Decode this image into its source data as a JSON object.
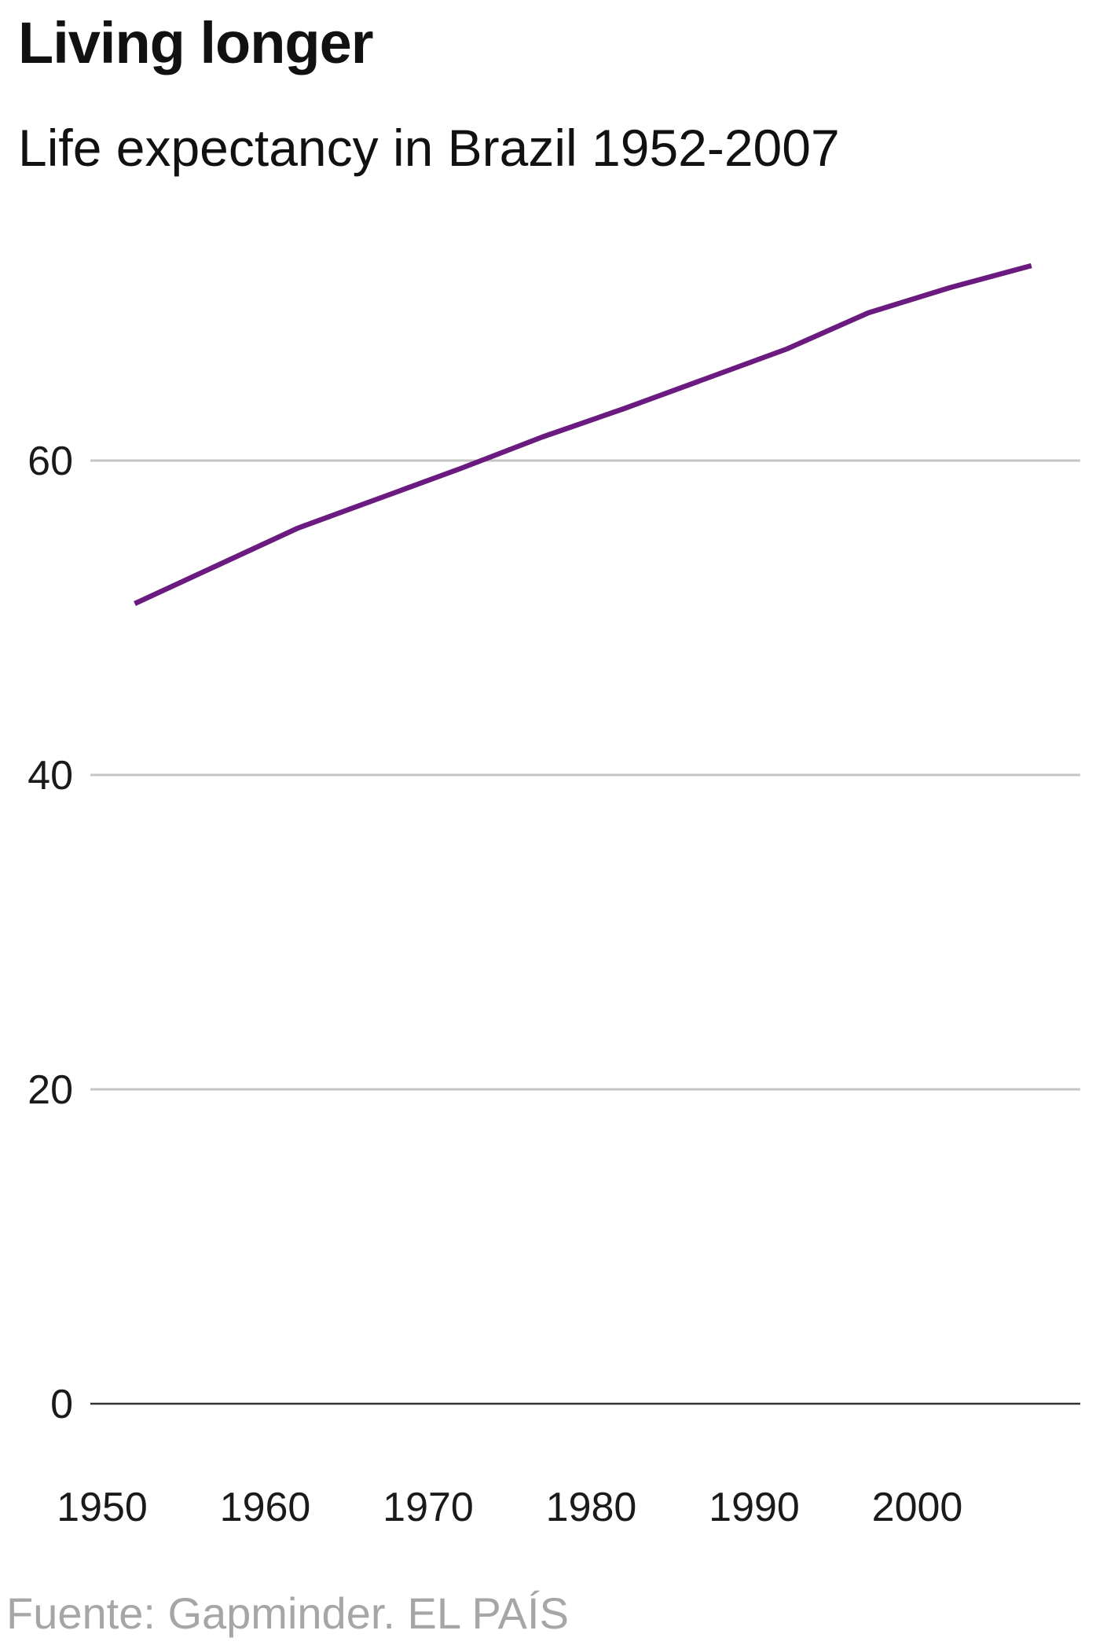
{
  "title": "Living longer",
  "subtitle": "Life expectancy in Brazil 1952-2007",
  "source": "Fuente: Gapminder. EL PAÍS",
  "colors": {
    "line": "#6b1a80",
    "grid": "#c4c4c4",
    "baseline": "#333333"
  },
  "chart_data": {
    "type": "line",
    "x": [
      1952,
      1957,
      1962,
      1967,
      1972,
      1977,
      1982,
      1987,
      1992,
      1997,
      2002,
      2007
    ],
    "series": [
      {
        "values": [
          50.9,
          53.3,
          55.7,
          57.6,
          59.5,
          61.5,
          63.3,
          65.2,
          67.1,
          69.4,
          71.0,
          72.4
        ]
      }
    ],
    "ylim": [
      0,
      80
    ],
    "yticks": [
      0,
      20,
      40,
      60
    ],
    "xlim": [
      1947,
      2012
    ],
    "xticks": [
      1950,
      1960,
      1970,
      1980,
      1990,
      2000
    ],
    "grid": true
  }
}
